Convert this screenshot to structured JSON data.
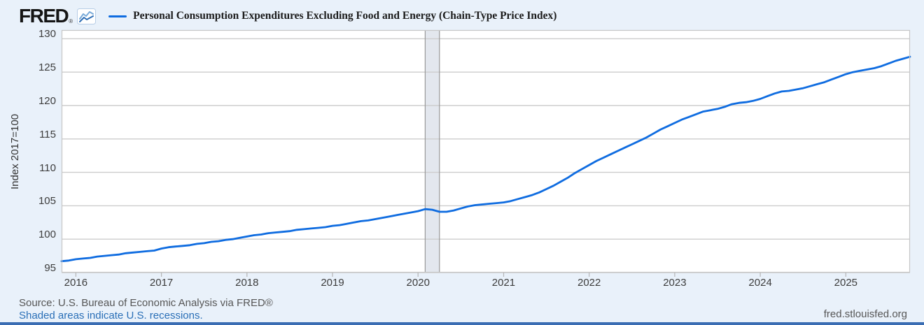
{
  "header": {
    "logo_text": "FRED",
    "registered_mark": "®"
  },
  "footer": {
    "source": "Source: U.S. Bureau of Economic Analysis via FRED®",
    "recessions_note": "Shaded areas indicate U.S. recessions.",
    "site_url": "fred.stlouisfed.org"
  },
  "colors": {
    "background": "#e9f1fa",
    "plot_background": "#ffffff",
    "plot_border": "#c6c6c6",
    "gridline": "#cdcdcd",
    "tick_mark": "#b5b5b5",
    "series_line": "#0f6ce0",
    "recession_fill": "#e3e7ee",
    "recession_border": "#999999",
    "link": "#2a6fb7",
    "bottom_bar": "#3a6db3",
    "muted_text": "#565656"
  },
  "chart_data": {
    "type": "line",
    "title": "Personal Consumption Expenditures Excluding Food and Energy (Chain-Type Price Index)",
    "ylabel": "Index 2017=100",
    "frequency": "monthly",
    "start": "2015-11",
    "end": "2025-10",
    "ylim": [
      95,
      131.3
    ],
    "y_ticks": [
      95,
      100,
      105,
      110,
      115,
      120,
      125,
      130
    ],
    "x_ticks": [
      2016,
      2017,
      2018,
      2019,
      2020,
      2021,
      2022,
      2023,
      2024,
      2025
    ],
    "grid": "horizontal",
    "legend_position": "top",
    "recession_bands": [
      {
        "start": "2020-02",
        "end": "2020-04"
      }
    ],
    "series": [
      {
        "name": "Personal Consumption Expenditures Excluding Food and Energy (Chain-Type Price Index)",
        "color": "#0f6ce0",
        "values": [
          96.7,
          96.8,
          97.0,
          97.1,
          97.2,
          97.4,
          97.5,
          97.6,
          97.7,
          97.9,
          98.0,
          98.1,
          98.2,
          98.3,
          98.6,
          98.8,
          98.9,
          99.0,
          99.1,
          99.3,
          99.4,
          99.6,
          99.7,
          99.9,
          100.0,
          100.2,
          100.4,
          100.6,
          100.7,
          100.9,
          101.0,
          101.1,
          101.2,
          101.4,
          101.5,
          101.6,
          101.7,
          101.8,
          102.0,
          102.1,
          102.3,
          102.5,
          102.7,
          102.8,
          103.0,
          103.2,
          103.4,
          103.6,
          103.8,
          104.0,
          104.2,
          104.5,
          104.4,
          104.1,
          104.1,
          104.3,
          104.6,
          104.9,
          105.1,
          105.2,
          105.3,
          105.4,
          105.5,
          105.7,
          106.0,
          106.3,
          106.6,
          107.0,
          107.5,
          108.0,
          108.6,
          109.2,
          109.9,
          110.5,
          111.1,
          111.7,
          112.2,
          112.7,
          113.2,
          113.7,
          114.2,
          114.7,
          115.2,
          115.8,
          116.4,
          116.9,
          117.4,
          117.9,
          118.3,
          118.7,
          119.1,
          119.3,
          119.5,
          119.8,
          120.2,
          120.4,
          120.5,
          120.7,
          121.0,
          121.4,
          121.8,
          122.1,
          122.2,
          122.4,
          122.6,
          122.9,
          123.2,
          123.5,
          123.9,
          124.3,
          124.7,
          125.0,
          125.2,
          125.4,
          125.6,
          125.9,
          126.3,
          126.7,
          127.0,
          127.3
        ]
      }
    ]
  }
}
